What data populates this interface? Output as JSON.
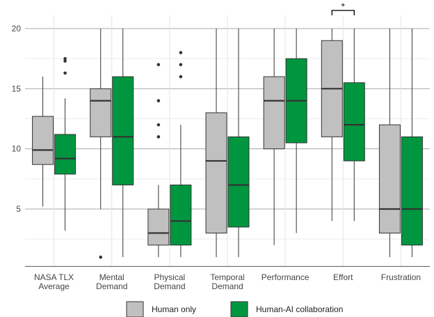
{
  "chart_data": {
    "type": "boxplot",
    "title": "",
    "xlabel": "",
    "ylabel": "",
    "ylim": [
      0,
      21
    ],
    "y_ticks": [
      5,
      10,
      15,
      20
    ],
    "grid": true,
    "legend_position": "bottom",
    "categories": [
      {
        "key": "nasa",
        "line1": "NASA TLX",
        "line2": "Average"
      },
      {
        "key": "mental",
        "line1": "Mental",
        "line2": "Demand"
      },
      {
        "key": "physical",
        "line1": "Physical",
        "line2": "Demand"
      },
      {
        "key": "temporal",
        "line1": "Temporal",
        "line2": "Demand"
      },
      {
        "key": "performance",
        "line1": "Performance",
        "line2": ""
      },
      {
        "key": "effort",
        "line1": "Effort",
        "line2": ""
      },
      {
        "key": "frustration",
        "line1": "Frustration",
        "line2": ""
      }
    ],
    "series": [
      {
        "name": "Human only",
        "color": "#c0c0c0",
        "boxes": [
          {
            "whisker_low": 5.2,
            "q1": 8.7,
            "median": 9.9,
            "q3": 12.7,
            "whisker_high": 16.0,
            "outliers": []
          },
          {
            "whisker_low": 5.0,
            "q1": 11.0,
            "median": 14.0,
            "q3": 15.0,
            "whisker_high": 20.0,
            "outliers": [
              1
            ]
          },
          {
            "whisker_low": 1.0,
            "q1": 2.0,
            "median": 3.0,
            "q3": 5.0,
            "whisker_high": 7.0,
            "outliers": [
              11,
              12,
              14,
              17
            ]
          },
          {
            "whisker_low": 1.0,
            "q1": 3.0,
            "median": 9.0,
            "q3": 13.0,
            "whisker_high": 20.0,
            "outliers": []
          },
          {
            "whisker_low": 2.0,
            "q1": 10.0,
            "median": 14.0,
            "q3": 16.0,
            "whisker_high": 20.0,
            "outliers": []
          },
          {
            "whisker_low": 4.0,
            "q1": 11.0,
            "median": 15.0,
            "q3": 19.0,
            "whisker_high": 20.0,
            "outliers": []
          },
          {
            "whisker_low": 1.0,
            "q1": 3.0,
            "median": 5.0,
            "q3": 12.0,
            "whisker_high": 20.0,
            "outliers": []
          }
        ]
      },
      {
        "name": "Human-AI collaboration",
        "color": "#009640",
        "boxes": [
          {
            "whisker_low": 3.2,
            "q1": 7.9,
            "median": 9.2,
            "q3": 11.2,
            "whisker_high": 14.2,
            "outliers": [
              16.3,
              17.3,
              17.5
            ]
          },
          {
            "whisker_low": 1.0,
            "q1": 7.0,
            "median": 11.0,
            "q3": 16.0,
            "whisker_high": 20.0,
            "outliers": []
          },
          {
            "whisker_low": 1.0,
            "q1": 2.0,
            "median": 4.0,
            "q3": 7.0,
            "whisker_high": 12.0,
            "outliers": [
              16,
              17,
              18
            ]
          },
          {
            "whisker_low": 1.0,
            "q1": 3.5,
            "median": 7.0,
            "q3": 11.0,
            "whisker_high": 20.0,
            "outliers": []
          },
          {
            "whisker_low": 3.0,
            "q1": 10.5,
            "median": 14.0,
            "q3": 17.5,
            "whisker_high": 20.0,
            "outliers": []
          },
          {
            "whisker_low": 4.0,
            "q1": 9.0,
            "median": 12.0,
            "q3": 15.5,
            "whisker_high": 20.0,
            "outliers": []
          },
          {
            "whisker_low": 1.0,
            "q1": 2.0,
            "median": 5.0,
            "q3": 11.0,
            "whisker_high": 20.0,
            "outliers": []
          }
        ]
      }
    ],
    "annotations": [
      {
        "category": "effort",
        "text": "*",
        "type": "significance-bracket"
      }
    ]
  },
  "legend": {
    "items": [
      {
        "label": "Human only",
        "color": "#c0c0c0"
      },
      {
        "label": "Human-AI collaboration",
        "color": "#009640"
      }
    ]
  }
}
